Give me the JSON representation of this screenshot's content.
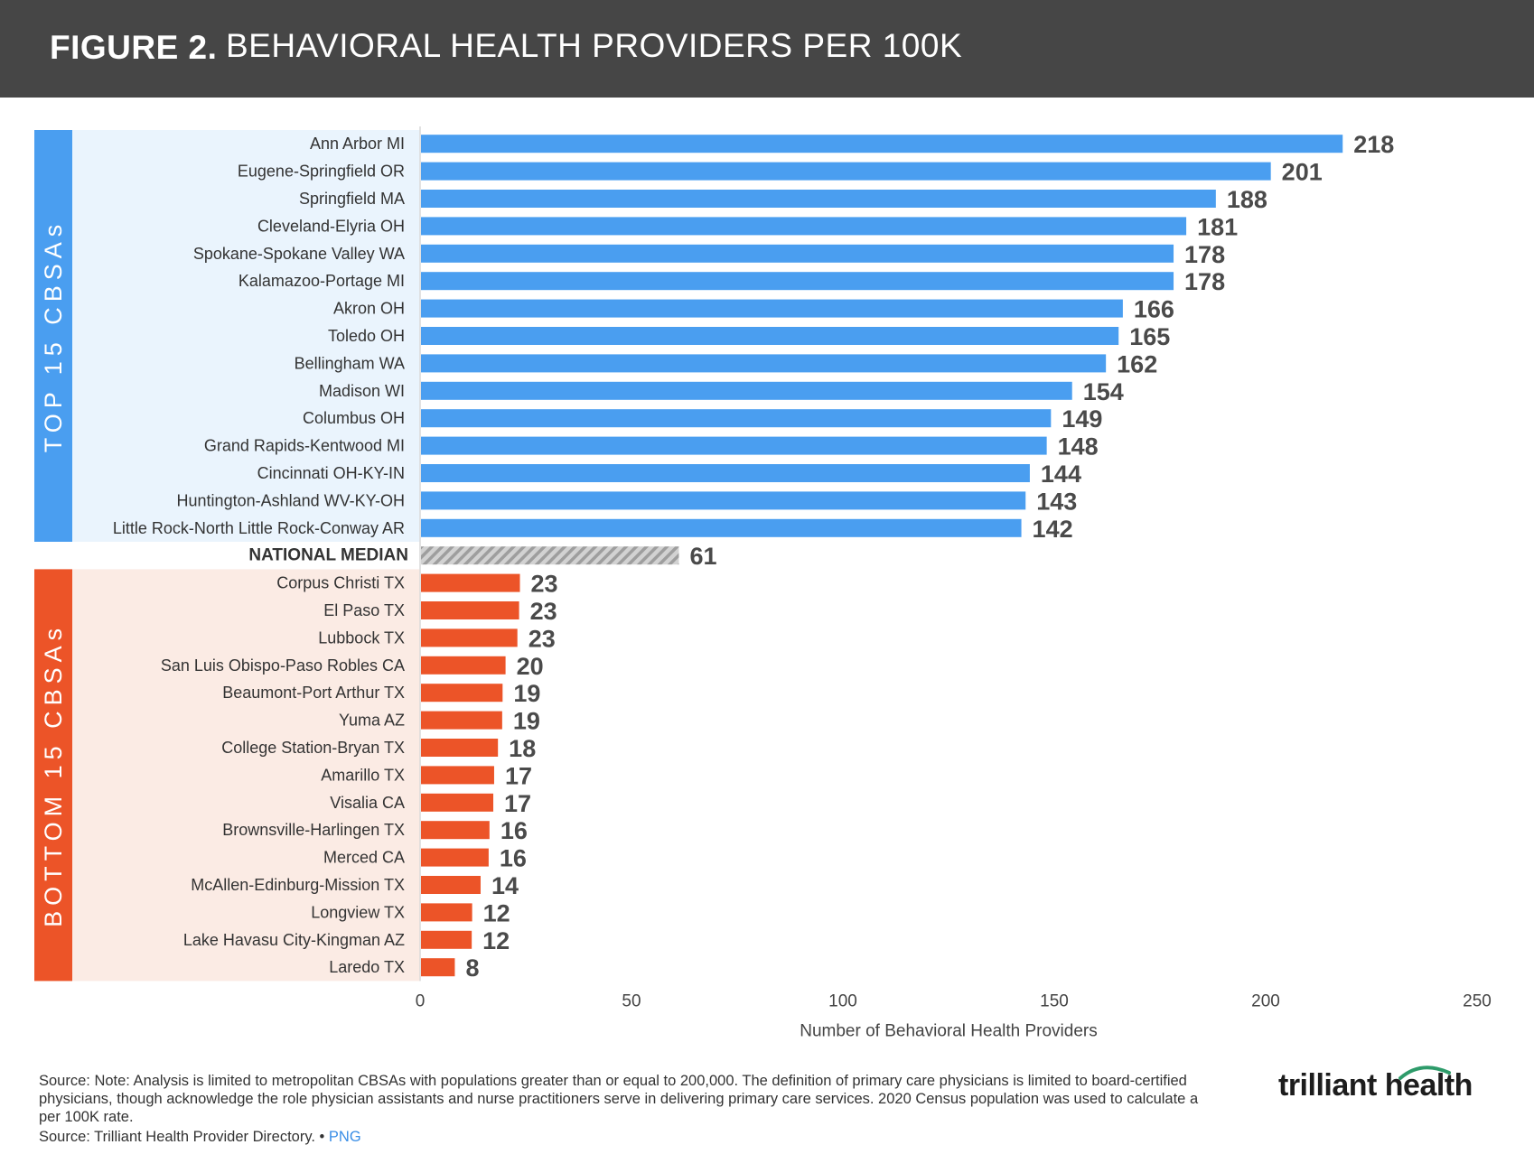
{
  "header": {
    "figure_label": "FIGURE 2.",
    "title": "BEHAVIORAL HEALTH PROVIDERS PER 100K"
  },
  "chart_data": {
    "type": "bar",
    "orientation": "horizontal",
    "title": "BEHAVIORAL HEALTH PROVIDERS PER 100K",
    "xlabel": "Number of Behavioral Health Providers",
    "ylabel": "",
    "xlim": [
      0,
      250
    ],
    "xticks": [
      0,
      50,
      100,
      150,
      200,
      250
    ],
    "groups": [
      {
        "name": "TOP 15 CBSAs",
        "color": "#4a9ef0",
        "categories": [
          "Ann Arbor MI",
          "Eugene-Springfield OR",
          "Springfield MA",
          "Cleveland-Elyria OH",
          "Spokane-Spokane Valley WA",
          "Kalamazoo-Portage MI",
          "Akron OH",
          "Toledo OH",
          "Bellingham WA",
          "Madison WI",
          "Columbus OH",
          "Grand Rapids-Kentwood MI",
          "Cincinnati OH-KY-IN",
          "Huntington-Ashland WV-KY-OH",
          "Little Rock-North Little Rock-Conway AR"
        ],
        "values": [
          218,
          201,
          188,
          181,
          178,
          178,
          166,
          165,
          162,
          154,
          149,
          148,
          144,
          143,
          142
        ]
      },
      {
        "name": "NATIONAL MEDIAN",
        "color": "#b5b5b5",
        "categories": [
          "NATIONAL MEDIAN"
        ],
        "values": [
          61
        ]
      },
      {
        "name": "BOTTOM 15 CBSAs",
        "color": "#ec5428",
        "categories": [
          "Corpus Christi TX",
          "El Paso TX",
          "Lubbock TX",
          "San Luis Obispo-Paso Robles CA",
          "Beaumont-Port Arthur TX",
          "Yuma AZ",
          "College Station-Bryan TX",
          "Amarillo TX",
          "Visalia CA",
          "Brownsville-Harlingen TX",
          "Merced CA",
          "McAllen-Edinburg-Mission TX",
          "Longview TX",
          "Lake Havasu City-Kingman AZ",
          "Laredo TX"
        ],
        "values": [
          23.4,
          23.2,
          22.8,
          20,
          19.3,
          19.2,
          18.2,
          17.3,
          17.1,
          16.2,
          16,
          14.1,
          12.1,
          12,
          8
        ]
      }
    ]
  },
  "footer": {
    "note": "Source: Note: Analysis is limited to metropolitan CBSAs with populations greater than or equal to 200,000. The definition of primary care physicians is limited to board-certified physicians, though acknowledge the role physician assistants and nurse practitioners serve in delivering primary care services. 2020 Census population was used to calculate a per 100K rate.",
    "source": "Source: Trilliant Health Provider Directory. •",
    "png_link": "PNG",
    "logo": "trilliant health"
  }
}
